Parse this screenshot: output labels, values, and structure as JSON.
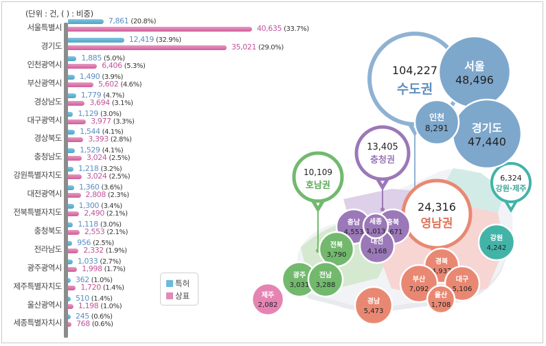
{
  "unit_note": "(단위 : 건, ( ) : 비중)",
  "legend": [
    {
      "label": "특허",
      "color": "#6bbbd9"
    },
    {
      "label": "상표",
      "color": "#e08bb8"
    }
  ],
  "chart_data": [
    {
      "type": "bar",
      "orientation": "horizontal",
      "title": "",
      "xlabel": "",
      "ylabel": "",
      "unit": "건",
      "xlim": [
        0,
        41000
      ],
      "legend_position": "bottom-right",
      "categories": [
        "서울특별시",
        "경기도",
        "인천광역시",
        "부산광역시",
        "경상남도",
        "대구광역시",
        "경상북도",
        "충청남도",
        "강원특별자치도",
        "대전광역시",
        "전북특별자치도",
        "충청북도",
        "전라남도",
        "광주광역시",
        "제주특별자치도",
        "울산광역시",
        "세종특별자치시"
      ],
      "series": [
        {
          "name": "특허",
          "color": "#5aa9cc",
          "values": [
            7861,
            12419,
            1885,
            1490,
            1779,
            1129,
            1544,
            1529,
            1218,
            1360,
            1300,
            1118,
            956,
            1033,
            362,
            510,
            245
          ],
          "labels": [
            "7,861",
            "12,419",
            "1,885",
            "1,490",
            "1,779",
            "1,129",
            "1,544",
            "1,529",
            "1,218",
            "1,360",
            "1,300",
            "1,118",
            "956",
            "1,033",
            "362",
            "510",
            "245"
          ],
          "shares": [
            "(20.8%)",
            "(32.9%)",
            "(5.0%)",
            "(3.9%)",
            "(4.7%)",
            "(3.0%)",
            "(4.1%)",
            "(4.1%)",
            "(3.2%)",
            "(3.6%)",
            "(3.4%)",
            "(3.0%)",
            "(2.5%)",
            "(2.7%)",
            "(1.0%)",
            "(1.4%)",
            "(0.6%)"
          ]
        },
        {
          "name": "상표",
          "color": "#d96aa6",
          "values": [
            40635,
            35021,
            6406,
            5602,
            3694,
            3977,
            3393,
            3024,
            3024,
            2808,
            2490,
            2553,
            2332,
            1998,
            1720,
            1198,
            768
          ],
          "labels": [
            "40,635",
            "35,021",
            "6,406",
            "5,602",
            "3,694",
            "3,977",
            "3,393",
            "3,024",
            "3,024",
            "2,808",
            "2,490",
            "2,553",
            "2,332",
            "1,998",
            "1,720",
            "1,198",
            "768"
          ],
          "shares": [
            "(33.7%)",
            "(29.0%)",
            "(5.3%)",
            "(4.6%)",
            "(3.1%)",
            "(3.3%)",
            "(2.8%)",
            "(2.5%)",
            "(2.5%)",
            "(2.3%)",
            "(2.1%)",
            "(2.1%)",
            "(1.9%)",
            "(1.7%)",
            "(1.4%)",
            "(1.0%)",
            "(0.6%)"
          ]
        }
      ]
    },
    {
      "type": "map-bubble",
      "title": "",
      "regions_groups": [
        {
          "name": "수도권",
          "total": "104,227",
          "color": "#7ea7cc",
          "members": [
            {
              "name": "서울",
              "value": "48,496"
            },
            {
              "name": "인천",
              "value": "8,291"
            },
            {
              "name": "경기도",
              "value": "47,440"
            }
          ]
        },
        {
          "name": "충청권",
          "total": "13,405",
          "color": "#9b78b8",
          "members": [
            {
              "name": "충남",
              "value": "4,553"
            },
            {
              "name": "세종",
              "value": "1,013"
            },
            {
              "name": "충북",
              "value": "3,671"
            },
            {
              "name": "대전",
              "value": "4,168"
            }
          ]
        },
        {
          "name": "호남권",
          "total": "10,109",
          "color": "#72b96e",
          "members": [
            {
              "name": "전북",
              "value": "3,790"
            },
            {
              "name": "광주",
              "value": "3,031"
            },
            {
              "name": "전남",
              "value": "3,288"
            }
          ]
        },
        {
          "name": "영남권",
          "total": "24,316",
          "color": "#e98872",
          "members": [
            {
              "name": "경북",
              "value": "4,937"
            },
            {
              "name": "대구",
              "value": "5,106"
            },
            {
              "name": "부산",
              "value": "7,092"
            },
            {
              "name": "울산",
              "value": "1,708"
            },
            {
              "name": "경남",
              "value": "5,473"
            }
          ]
        },
        {
          "name": "강원·제주",
          "total": "6,324",
          "color": "#43b3a8",
          "members": [
            {
              "name": "강원",
              "value": "4,242"
            },
            {
              "name": "제주",
              "value": "2,082",
              "color": "#e584b3"
            }
          ]
        }
      ]
    }
  ]
}
